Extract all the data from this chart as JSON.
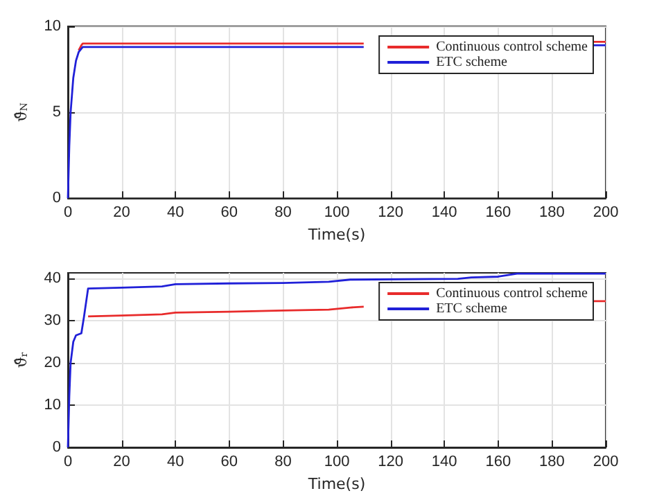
{
  "chart_data": [
    {
      "type": "line",
      "xlabel": "Time(s)",
      "ylabel": "ϑ̂$_{N}$",
      "xlim": [
        0,
        200
      ],
      "ylim": [
        0,
        10
      ],
      "xticks": [
        0,
        20,
        40,
        60,
        80,
        100,
        120,
        140,
        160,
        180,
        200
      ],
      "yticks": [
        0,
        5,
        10
      ],
      "grid": true,
      "legend": "top right",
      "series": [
        {
          "name": "Continuous control scheme",
          "color": "#e82b2b",
          "x": [
            4,
            5,
            5.5,
            20,
            60,
            110,
            112,
            195,
            200
          ],
          "values": [
            8.6,
            8.9,
            9.0,
            9.0,
            9.0,
            9.0,
            null,
            9.1,
            9.1
          ]
        },
        {
          "name": "ETC scheme",
          "color": "#2020d8",
          "x": [
            0,
            0.5,
            1,
            2,
            3,
            4,
            5.5,
            20,
            60,
            110,
            112,
            195,
            200
          ],
          "values": [
            0,
            3,
            5,
            7,
            8,
            8.5,
            8.8,
            8.8,
            8.8,
            8.8,
            null,
            8.9,
            8.9
          ]
        }
      ]
    },
    {
      "type": "line",
      "xlabel": "Time(s)",
      "ylabel": "ϑ̂$_{r}$",
      "xlim": [
        0,
        200
      ],
      "ylim": [
        0,
        41.3
      ],
      "xticks": [
        0,
        20,
        40,
        60,
        80,
        100,
        120,
        140,
        160,
        180,
        200
      ],
      "yticks": [
        0,
        10,
        20,
        30,
        40
      ],
      "grid": true,
      "legend": "top right",
      "series": [
        {
          "name": "Continuous control scheme",
          "color": "#e82b2b",
          "x": [
            7.5,
            20,
            35,
            40,
            60,
            80,
            97,
            105,
            110,
            112,
            195,
            200
          ],
          "values": [
            31,
            31.2,
            31.5,
            31.9,
            32.1,
            32.4,
            32.6,
            33.1,
            33.3,
            null,
            34.6,
            34.6
          ]
        },
        {
          "name": "ETC scheme",
          "color": "#2020d8",
          "x": [
            0,
            0.5,
            1,
            2,
            3,
            5,
            6,
            7.5,
            20,
            35,
            40,
            60,
            80,
            97,
            105,
            145,
            150,
            160,
            167,
            200
          ],
          "values": [
            0,
            12,
            20,
            25,
            26.5,
            27,
            31,
            37.6,
            37.8,
            38.1,
            38.6,
            38.8,
            38.9,
            39.2,
            39.7,
            39.9,
            40.2,
            40.4,
            41.1,
            41.1
          ]
        }
      ]
    }
  ]
}
